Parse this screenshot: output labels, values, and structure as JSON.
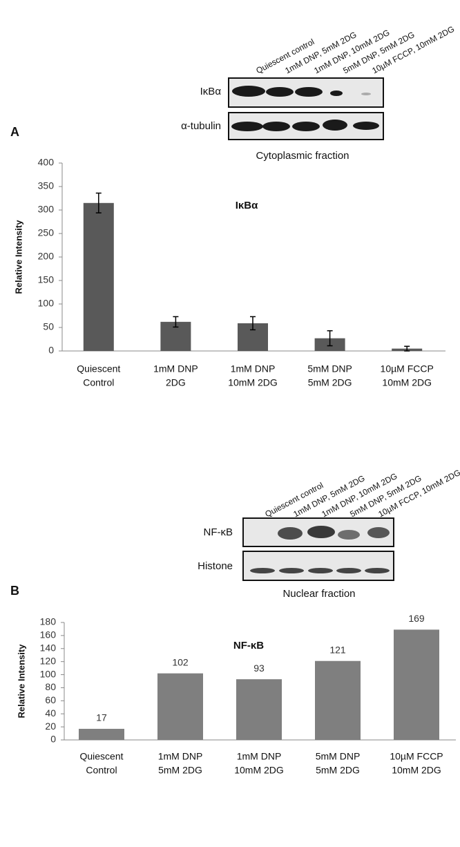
{
  "blots": [
    {
      "panel": "A",
      "lanes": [
        "Quiescent control",
        "1mM DNP, 5mM 2DG",
        "1mM DNP, 10mM 2DG",
        "5mM DNP, 5mM 2DG",
        "10µM FCCP, 10mM 2DG"
      ],
      "rows": [
        "IκBα",
        "α-tubulin"
      ],
      "caption": "Cytoplasmic fraction"
    },
    {
      "panel": "B",
      "lanes": [
        "Quiescent control",
        "1mM DNP, 5mM 2DG",
        "1mM DNP, 10mM 2DG",
        "5mM DNP, 5mM 2DG",
        "10µM FCCP, 10mM 2DG"
      ],
      "rows": [
        "NF-κB",
        "Histone"
      ],
      "caption": "Nuclear fraction"
    }
  ],
  "chart_data": [
    {
      "type": "bar",
      "title": "IκBα",
      "y_label": "Relative Intensity",
      "categories": [
        [
          "Quiescent",
          "Control"
        ],
        [
          "1mM DNP",
          "2DG"
        ],
        [
          "1mM DNP",
          "10mM 2DG"
        ],
        [
          "5mM DNP",
          "5mM 2DG"
        ],
        [
          "10µM FCCP",
          "10mM 2DG"
        ]
      ],
      "values": [
        315,
        62,
        59,
        27,
        5
      ],
      "errors": [
        21,
        11,
        14,
        16,
        5
      ],
      "color": "#595959",
      "ylim": [
        0,
        400
      ],
      "yticks": [
        0,
        50,
        100,
        150,
        200,
        250,
        300,
        350,
        400
      ],
      "grid": false
    },
    {
      "type": "bar",
      "title": "NF-κB",
      "y_label": "Relative Intensity",
      "categories": [
        [
          "Quiescent",
          "Control"
        ],
        [
          "1mM DNP",
          "5mM  2DG"
        ],
        [
          "1mM DNP",
          "10mM 2DG"
        ],
        [
          "5mM DNP",
          "5mM 2DG"
        ],
        [
          "10µM FCCP",
          "10mM 2DG"
        ]
      ],
      "values": [
        17,
        102,
        93,
        121,
        169
      ],
      "show_value_labels": true,
      "color": "#7f7f7f",
      "ylim": [
        0,
        180
      ],
      "yticks": [
        0,
        20,
        40,
        60,
        80,
        100,
        120,
        140,
        160,
        180
      ],
      "grid": false
    }
  ]
}
